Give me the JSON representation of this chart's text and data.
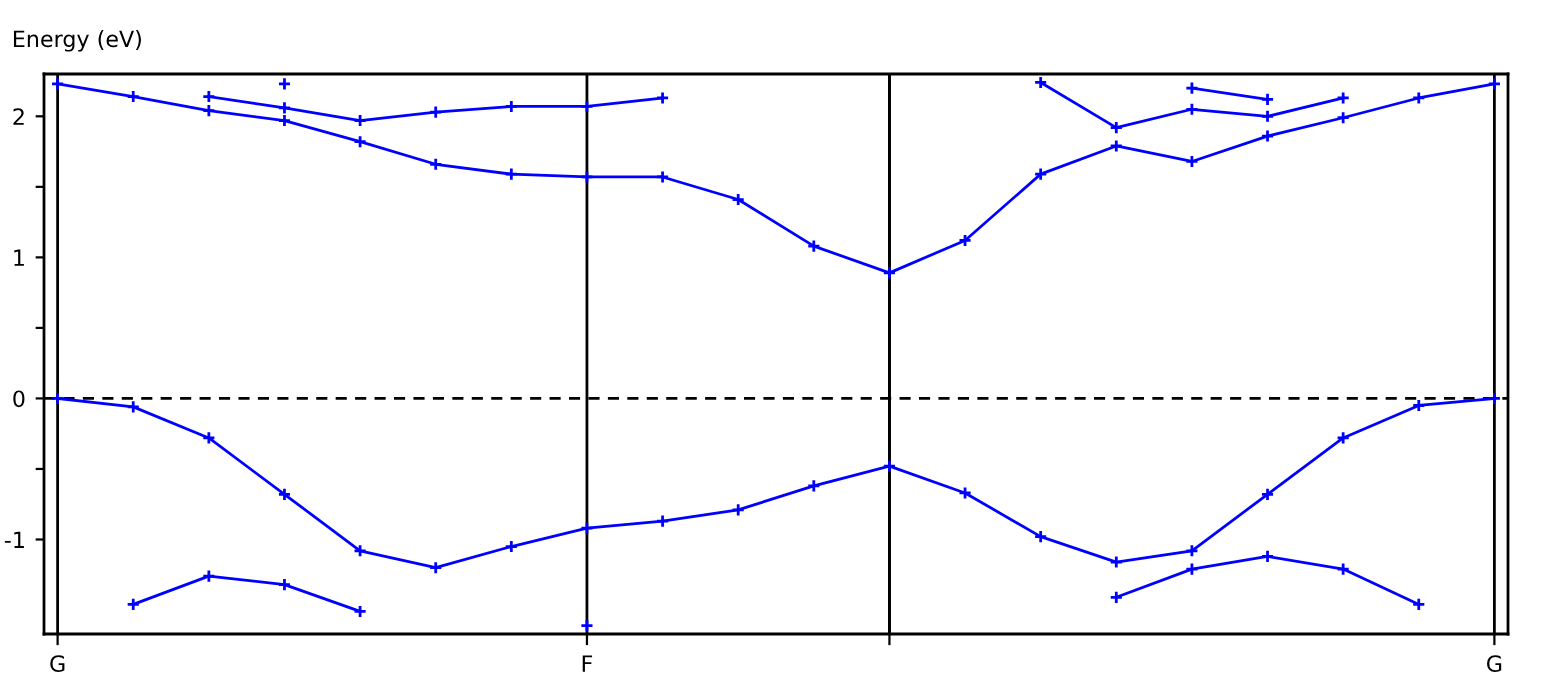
{
  "chart_data": {
    "type": "line",
    "ylabel": "Energy (eV)",
    "categories": [
      "G",
      null,
      null,
      null,
      null,
      null,
      null,
      "F",
      null,
      null,
      null,
      null,
      null,
      null,
      null,
      null,
      null,
      null,
      null,
      "G"
    ],
    "ylim": [
      -1.67,
      2.3
    ],
    "yticks": [
      -1,
      {
        "value": -0.5,
        "label": null
      },
      0,
      {
        "value": 0.5,
        "label": null
      },
      1,
      {
        "value": 1.5,
        "label": null
      },
      2
    ],
    "grid": "x",
    "marker": "cross",
    "line_style": "solid",
    "ref_lines": [
      {
        "axis": "y",
        "value": 0,
        "color": "#000000",
        "line_style": "dashed"
      }
    ],
    "series": [
      {
        "color": "#0000ff",
        "values": [
          0,
          -0.06,
          -0.28,
          -0.68,
          -1.08,
          -1.2,
          -1.05,
          -0.92,
          -0.87,
          -0.79,
          -0.62,
          -0.48,
          -0.67,
          -0.98,
          -1.16,
          -1.08,
          -0.68,
          -0.28,
          -0.05,
          0
        ]
      },
      {
        "color": "#0000ff",
        "values": [
          null,
          -1.46,
          -1.26,
          -1.32,
          -1.51,
          null,
          null,
          -1.61,
          null,
          null,
          null,
          null,
          null,
          null,
          -1.41,
          -1.21,
          -1.12,
          -1.21,
          -1.46,
          null
        ]
      },
      {
        "color": "#0000ff",
        "values": [
          2.23,
          2.14,
          2.04,
          1.97,
          1.82,
          1.66,
          1.59,
          1.57,
          1.57,
          1.41,
          1.08,
          0.89,
          1.12,
          1.59,
          1.79,
          1.68,
          1.86,
          1.99,
          2.13,
          2.23
        ]
      },
      {
        "color": "#0000ff",
        "values": [
          null,
          null,
          2.14,
          2.06,
          1.97,
          2.03,
          2.07,
          2.07,
          2.13,
          null,
          null,
          null,
          null,
          null,
          null,
          null,
          null,
          null,
          null,
          null
        ]
      },
      {
        "color": "#0000ff",
        "values": [
          null,
          null,
          null,
          null,
          null,
          null,
          null,
          null,
          null,
          null,
          null,
          null,
          null,
          2.24,
          1.92,
          2.05,
          2.0,
          2.13,
          null,
          null
        ]
      },
      {
        "color": "#0000ff",
        "values": [
          null,
          null,
          null,
          null,
          null,
          null,
          null,
          null,
          null,
          null,
          null,
          null,
          null,
          null,
          null,
          2.2,
          2.12,
          null,
          null,
          null
        ]
      },
      {
        "color": "#0000ff",
        "values": [
          null,
          null,
          null,
          2.23,
          null,
          null,
          null,
          null,
          null,
          null,
          null,
          null,
          null,
          null,
          null,
          null,
          null,
          null,
          null,
          null
        ]
      }
    ]
  }
}
